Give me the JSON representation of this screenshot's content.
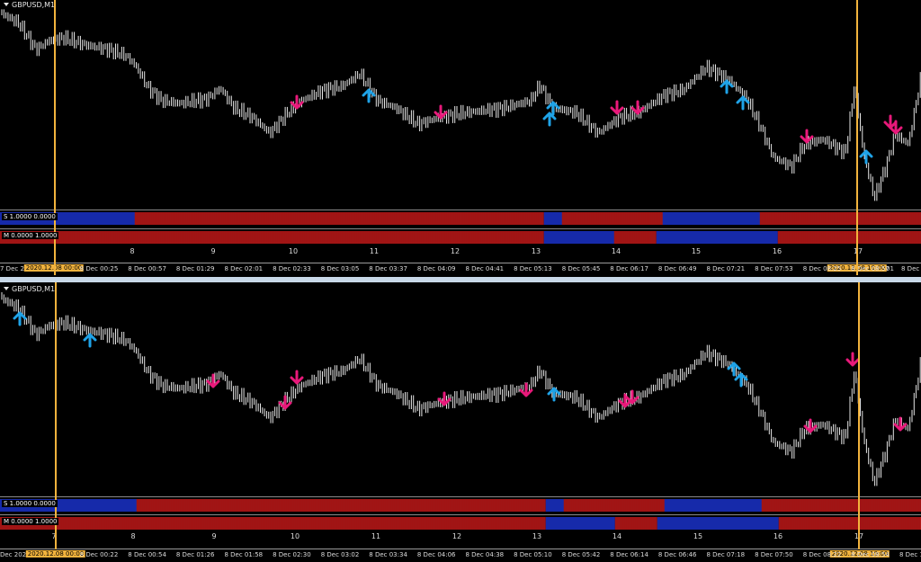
{
  "top": {
    "symbol": "GBPUSD,M1",
    "ind_s": "S 1.0000 0.0000",
    "ind_m": "M 0.0000 1.0000",
    "ticks": [
      "8",
      "9",
      "10",
      "11",
      "12",
      "13",
      "14",
      "15",
      "16",
      "17"
    ],
    "time_left": "7 Dec 202",
    "time_hl_left": "2020.12.08 00:00",
    "time_labels": [
      "8 Dec 00:25",
      "8 Dec 00:57",
      "8 Dec 01:29",
      "8 Dec 02:01",
      "8 Dec 02:33",
      "8 Dec 03:05",
      "8 Dec 03:37",
      "8 Dec 04:09",
      "8 Dec 04:41",
      "8 Dec 05:13",
      "8 Dec 05:45",
      "8 Dec 06:17",
      "8 Dec 06:49",
      "8 Dec 07:21",
      "8 Dec 07:53",
      "8 Dec 08:25",
      "8 Dec 08:57"
    ],
    "time_hl_right": "2020.12.08 10:00",
    "time_after": "01",
    "time_right": "8 Dec 1"
  },
  "bottom": {
    "symbol": "GBPUSD,M1",
    "ind_s": "S 1.0000 0.0000",
    "ind_m": "M 0.0000 1.0000",
    "ticks": [
      "7",
      "8",
      "9",
      "10",
      "11",
      "12",
      "13",
      "14",
      "15",
      "16",
      "17"
    ],
    "time_left": "Dec 2020",
    "time_hl_left": "2020.12.08 00:00",
    "time_labels": [
      "8 Dec 00:22",
      "8 Dec 00:54",
      "8 Dec 01:26",
      "8 Dec 01:58",
      "8 Dec 02:30",
      "8 Dec 03:02",
      "8 Dec 03:34",
      "8 Dec 04:06",
      "8 Dec 04:38",
      "8 Dec 05:10",
      "8 Dec 05:42",
      "8 Dec 06:14",
      "8 Dec 06:46",
      "8 Dec 07:18",
      "8 Dec 07:50",
      "8 Dec 08:22",
      "8 Dec 08:54"
    ],
    "time_hl_right": "2020.12.08 10:00",
    "time_right": "8 Dec 1"
  },
  "colors": {
    "background": "#000000",
    "candles": "#e6e6e6",
    "vline": "#f2b33d",
    "buy_arrow": "#1fa3e8",
    "sell_arrow": "#e8197a",
    "bear_block": "#b01818",
    "bull_block": "#1a2fb8"
  }
}
